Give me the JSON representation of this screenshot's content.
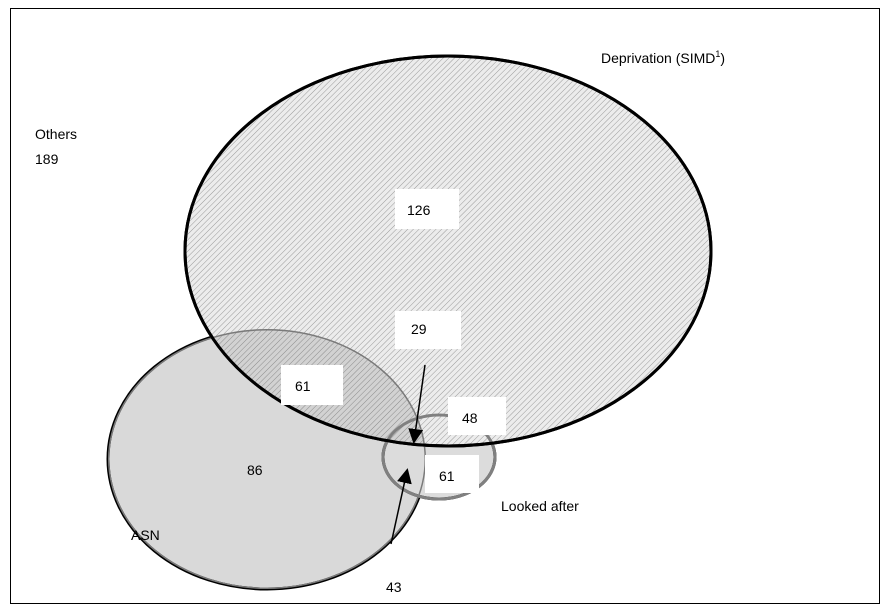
{
  "labels": {
    "deprivation": "Deprivation (SIMD",
    "deprivation_sup": "1",
    "deprivation_close": ")",
    "others_title": "Others",
    "others_value": "189",
    "asn": "ASN",
    "looked_after": "Looked after"
  },
  "counts": {
    "deprivation_only": "126",
    "deprivation_looked_after": "29",
    "asn_deprivation": "61",
    "deprivation_looked_after_overlap": "48",
    "looked_after_only": "61",
    "asn_only": "86",
    "asn_looked_after": "43"
  },
  "colors": {
    "deprivation_fill": "#e6e6e6",
    "asn_fill": "#d6d6d6",
    "overlap_stroke": "#7a7a7a",
    "outline": "#000000"
  }
}
